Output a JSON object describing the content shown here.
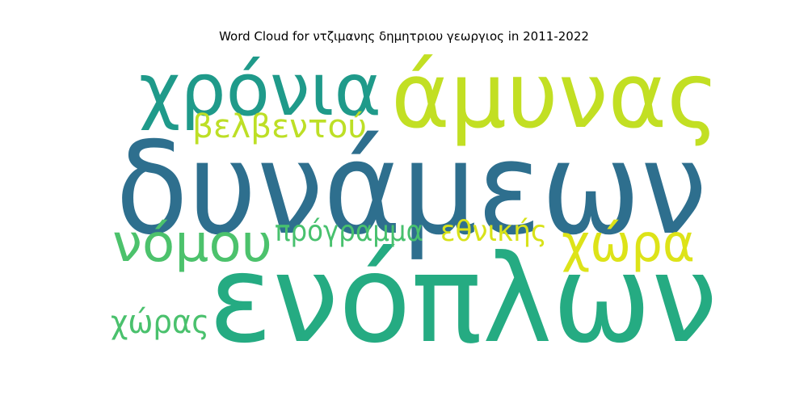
{
  "chart_data": {
    "type": "wordcloud",
    "title": "Word Cloud for ντζιμανης δημητριου γεωργιος in 2011-2022",
    "words": [
      {
        "text": "δυνάμεων",
        "weight": 1.0,
        "color": "#2e6f8e"
      },
      {
        "text": "ενόπλων",
        "weight": 0.96,
        "color": "#25ab82"
      },
      {
        "text": "άμυνας",
        "weight": 0.72,
        "color": "#c2df23"
      },
      {
        "text": "χρόνια",
        "weight": 0.58,
        "color": "#1f9a8a"
      },
      {
        "text": "νόμου",
        "weight": 0.42,
        "color": "#4cc26c"
      },
      {
        "text": "χώρα",
        "weight": 0.42,
        "color": "#dde318"
      },
      {
        "text": "βελβεντού",
        "weight": 0.26,
        "color": "#bddf26"
      },
      {
        "text": "πρόγραμμα",
        "weight": 0.24,
        "color": "#48c16e"
      },
      {
        "text": "εθνικής",
        "weight": 0.24,
        "color": "#d8e219"
      },
      {
        "text": "χώρας",
        "weight": 0.24,
        "color": "#4ac16d"
      }
    ]
  }
}
